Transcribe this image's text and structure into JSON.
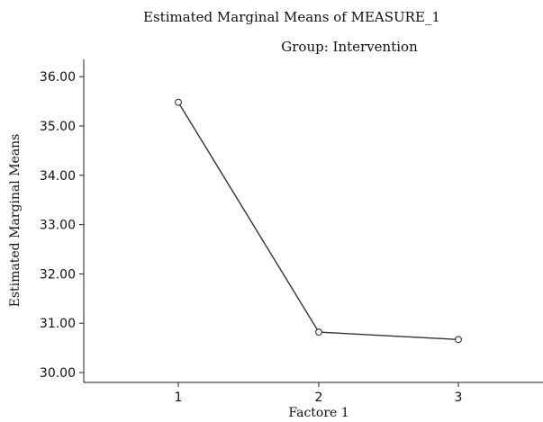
{
  "chart_data": {
    "type": "line",
    "title": "Estimated Marginal Means of MEASURE_1",
    "subtitle": "Group: Intervention",
    "xlabel": "Factore 1",
    "ylabel": "Estimated Marginal Means",
    "categories": [
      "1",
      "2",
      "3"
    ],
    "series": [
      {
        "values": [
          35.48,
          30.82,
          30.67
        ]
      }
    ],
    "ylim": [
      29.8,
      36.35
    ],
    "yticks": [
      "30.00",
      "31.00",
      "32.00",
      "33.00",
      "34.00",
      "35.00",
      "36.00"
    ],
    "grid": false,
    "legend": "none",
    "colors": {
      "line": "#333333",
      "axis": "#222222",
      "text": "#111111"
    }
  }
}
